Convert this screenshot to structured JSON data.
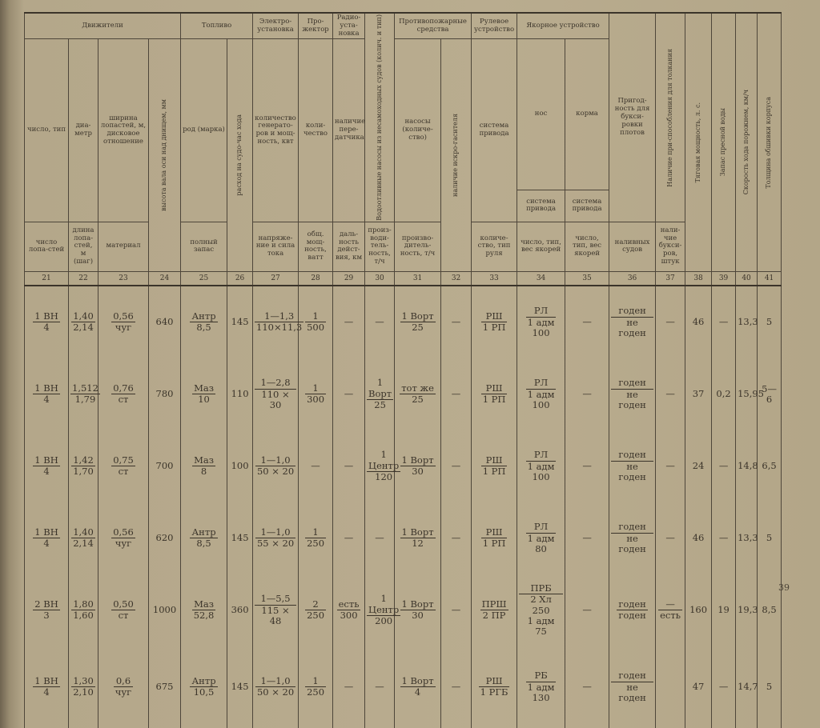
{
  "header": {
    "groups": {
      "propulsion": "Движители",
      "fuel": "Топливо",
      "electric": "Электро-установка",
      "searchlight": "Про-жектор",
      "radio": "Радио-уста-новка",
      "drain_pumps": "Водоотливные насосы из несамоходных судов (колич. и тип)",
      "fire": "Противопожарные средства",
      "steering": "Рулевое устройство",
      "anchor": "Якорное устройство",
      "towing": "Пригод-ность для букси-ровки плотов",
      "pushing": "Наличие при-способления для толкания",
      "traction": "Тяговая мощность, л. с.",
      "water": "Запас пресной воды",
      "speed": "Скорость хода порожнем, км/ч",
      "hull": "Толщина обшивки корпуса"
    },
    "bow": "нос",
    "stern": "корма",
    "upper": {
      "c21": "число, тип",
      "c22": "диа-метр",
      "c23": "ширина лопастей, м, дисковое отношение",
      "c24": "высота вала оси над днищем, мм",
      "c25": "род (марка)",
      "c26": "расход на судо-час хода",
      "c27": "количество генерато-ров и мощ-ность, квт",
      "c28": "коли-чество",
      "c29": "наличие пере-датчика",
      "c31": "насосы (количе-ство)",
      "c32": "наличие искро-гасителя",
      "c33": "система привода",
      "c34": "система привода",
      "c35": "система привода"
    },
    "lower": {
      "c21": "число лопа-стей",
      "c22": "длина лопа-стей, м (шаг)",
      "c23": "материал",
      "c25": "полный запас",
      "c27": "напряже-ние и сила тока",
      "c28": "общ. мощ-ность, ватт",
      "c29": "даль-ность дейст-вия, км",
      "c30": "произ-води-тель-ность, т/ч",
      "c31": "произво-дитель-ность, т/ч",
      "c33": "количе-ство, тип руля",
      "c34": "число, тип, вес якорей",
      "c35": "число, тип, вес якорей",
      "c36": "наливных судов",
      "c37": "нали-чие букси-ров, штук"
    },
    "numbers": [
      "21",
      "22",
      "23",
      "24",
      "25",
      "26",
      "27",
      "28",
      "29",
      "30",
      "31",
      "32",
      "33",
      "34",
      "35",
      "36",
      "37",
      "38",
      "39",
      "40",
      "41"
    ]
  },
  "rows": [
    {
      "cells": [
        {
          "t": "1 ВН",
          "b": "4"
        },
        {
          "t": "1,40",
          "b": "2,14"
        },
        {
          "t": "0,56",
          "b": "чуг"
        },
        {
          "v": "640"
        },
        {
          "t": "Антр",
          "b": "8,5"
        },
        {
          "v": "145"
        },
        {
          "t": "1—1,3",
          "b": "110×11,3"
        },
        {
          "t": "1",
          "b": "500"
        },
        {
          "v": "—"
        },
        {
          "v": "—"
        },
        {
          "t": "1 Ворт",
          "b": "25"
        },
        {
          "v": "—"
        },
        {
          "t": "РШ",
          "b": "1 РП"
        },
        {
          "t": "РЛ",
          "b": "1 адм\n100"
        },
        {
          "v": "—"
        },
        {
          "t": "годен",
          "b": "не годен"
        },
        {
          "v": "—"
        },
        {
          "v": "46"
        },
        {
          "v": "—"
        },
        {
          "v": "13,3"
        },
        {
          "v": "5"
        }
      ]
    },
    {
      "cells": [
        {
          "t": "1 ВН",
          "b": "4"
        },
        {
          "t": "1,512",
          "b": "1,79"
        },
        {
          "t": "0,76",
          "b": "ст"
        },
        {
          "v": "780"
        },
        {
          "t": "Маз",
          "b": "10"
        },
        {
          "v": "110"
        },
        {
          "t": "1—2,8",
          "b": "110 × 30"
        },
        {
          "t": "1",
          "b": "300"
        },
        {
          "v": "—"
        },
        {
          "t": "1 Ворт",
          "b": "25"
        },
        {
          "t": "тот же",
          "b": "25"
        },
        {
          "v": "—"
        },
        {
          "t": "РШ",
          "b": "1 РП"
        },
        {
          "t": "РЛ",
          "b": "1 адм\n100"
        },
        {
          "v": "—"
        },
        {
          "t": "годен",
          "b": "не годен"
        },
        {
          "v": "—"
        },
        {
          "v": "37"
        },
        {
          "v": "0,2"
        },
        {
          "v": "15,95"
        },
        {
          "v": "5—6"
        }
      ]
    },
    {
      "cells": [
        {
          "t": "1 ВН",
          "b": "4"
        },
        {
          "t": "1,42",
          "b": "1,70"
        },
        {
          "t": "0,75",
          "b": "ст"
        },
        {
          "v": "700"
        },
        {
          "t": "Маз",
          "b": "8"
        },
        {
          "v": "100"
        },
        {
          "t": "1—1,0",
          "b": "50 × 20"
        },
        {
          "v": "—"
        },
        {
          "v": "—"
        },
        {
          "t": "1 Центр",
          "b": "120"
        },
        {
          "t": "1 Ворт",
          "b": "30"
        },
        {
          "v": "—"
        },
        {
          "t": "РШ",
          "b": "1 РП"
        },
        {
          "t": "РЛ",
          "b": "1 адм\n100"
        },
        {
          "v": "—"
        },
        {
          "t": "годен",
          "b": "не годен"
        },
        {
          "v": "—"
        },
        {
          "v": "24"
        },
        {
          "v": "—"
        },
        {
          "v": "14,8"
        },
        {
          "v": "6,5"
        }
      ]
    },
    {
      "cells": [
        {
          "t": "1 ВН",
          "b": "4"
        },
        {
          "t": "1,40",
          "b": "2,14"
        },
        {
          "t": "0,56",
          "b": "чуг"
        },
        {
          "v": "620"
        },
        {
          "t": "Антр",
          "b": "8,5"
        },
        {
          "v": "145"
        },
        {
          "t": "1—1,0",
          "b": "55 × 20"
        },
        {
          "t": "1",
          "b": "250"
        },
        {
          "v": "—"
        },
        {
          "v": "—"
        },
        {
          "t": "1 Ворт",
          "b": "12"
        },
        {
          "v": "—"
        },
        {
          "t": "РШ",
          "b": "1 РП"
        },
        {
          "t": "РЛ",
          "b": "1 адм\n80"
        },
        {
          "v": "—"
        },
        {
          "t": "годен",
          "b": "не годен"
        },
        {
          "v": "—"
        },
        {
          "v": "46"
        },
        {
          "v": "—"
        },
        {
          "v": "13,3"
        },
        {
          "v": "5"
        }
      ]
    },
    {
      "cells": [
        {
          "t": "2 ВН",
          "b": "3"
        },
        {
          "t": "1,80",
          "b": "1,60"
        },
        {
          "t": "0,50",
          "b": "ст"
        },
        {
          "v": "1000"
        },
        {
          "t": "Маз",
          "b": "52,8"
        },
        {
          "v": "360"
        },
        {
          "t": "1—5,5",
          "b": "115 × 48"
        },
        {
          "t": "2",
          "b": "250"
        },
        {
          "t": "есть",
          "b": "300"
        },
        {
          "t": "1 Центр",
          "b": "200"
        },
        {
          "t": "1 Ворт",
          "b": "30"
        },
        {
          "v": "—"
        },
        {
          "t": "ПРШ",
          "b": "2 ПР"
        },
        {
          "t": "ПРБ",
          "b": "2 Хл 250\n1 адм 75"
        },
        {
          "v": "—"
        },
        {
          "t": "годен",
          "b": "годен"
        },
        {
          "t": "—",
          "b": "есть"
        },
        {
          "v": "160"
        },
        {
          "v": "19"
        },
        {
          "v": "19,3"
        },
        {
          "v": "8,5"
        }
      ]
    },
    {
      "cells": [
        {
          "t": "1 ВН",
          "b": "4"
        },
        {
          "t": "1,30",
          "b": "2,10"
        },
        {
          "t": "0,6",
          "b": "чуг"
        },
        {
          "v": "675"
        },
        {
          "t": "Антр",
          "b": "10,5"
        },
        {
          "v": "145"
        },
        {
          "t": "1—1,0",
          "b": "50 × 20"
        },
        {
          "t": "1",
          "b": "250"
        },
        {
          "v": "—"
        },
        {
          "v": "—"
        },
        {
          "t": "1 Ворт",
          "b": "4"
        },
        {
          "v": "—"
        },
        {
          "t": "РШ",
          "b": "1 РГБ"
        },
        {
          "t": "РБ",
          "b": "1 адм\n130"
        },
        {
          "v": "—"
        },
        {
          "t": "годен",
          "b": "не годен"
        },
        {
          "v": ""
        },
        {
          "v": "47"
        },
        {
          "v": "—"
        },
        {
          "v": "14,7"
        },
        {
          "v": "5"
        }
      ]
    }
  ],
  "page_number": "39"
}
